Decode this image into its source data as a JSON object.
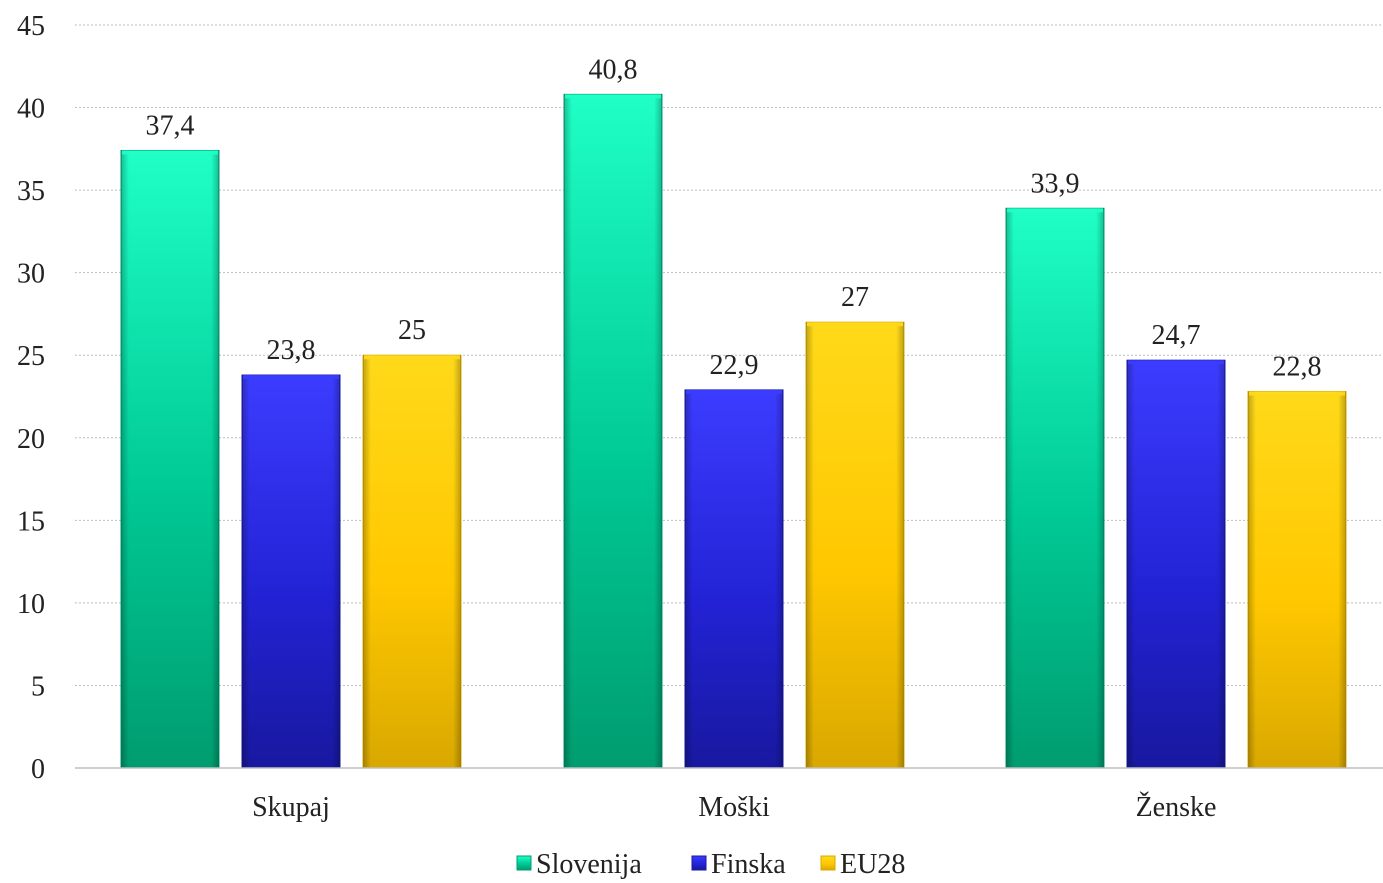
{
  "chart_data": {
    "type": "bar",
    "title": "",
    "xlabel": "",
    "ylabel": "",
    "ylim": [
      0,
      45
    ],
    "yticks": [
      0,
      5,
      10,
      15,
      20,
      25,
      30,
      35,
      40,
      45
    ],
    "grid": true,
    "legend_position": "bottom",
    "categories": [
      "Skupaj",
      "Moški",
      "Ženske"
    ],
    "series": [
      {
        "name": "Slovenija",
        "values": [
          37.4,
          40.8,
          33.9
        ],
        "labels": [
          "37,4",
          "40,8",
          "33,9"
        ],
        "color": "#00c995",
        "color_light": "#1fffc6",
        "color_dark": "#009c6f"
      },
      {
        "name": "Finska",
        "values": [
          23.8,
          22.9,
          24.7
        ],
        "labels": [
          "23,8",
          "22,9",
          "24,7"
        ],
        "color": "#2323d6",
        "color_light": "#3c3cff",
        "color_dark": "#18189f"
      },
      {
        "name": "EU28",
        "values": [
          25,
          27,
          22.8
        ],
        "labels": [
          "25",
          "27",
          "22,8"
        ],
        "color": "#ffc800",
        "color_light": "#ffd91a",
        "color_dark": "#d9a800"
      }
    ]
  }
}
